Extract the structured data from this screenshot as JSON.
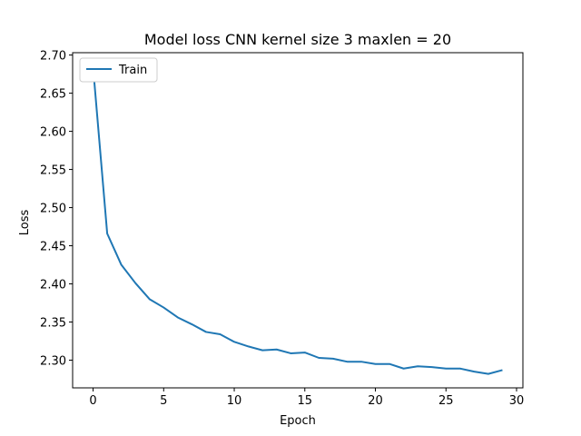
{
  "chart_data": {
    "type": "line",
    "title": "Model loss CNN kernel size 3 maxlen = 20",
    "xlabel": "Epoch",
    "ylabel": "Loss",
    "xlim": [
      -1.45,
      30.45
    ],
    "ylim": [
      2.2637,
      2.7031
    ],
    "xticks": [
      0,
      5,
      10,
      15,
      20,
      25,
      30
    ],
    "yticks": [
      2.3,
      2.35,
      2.4,
      2.45,
      2.5,
      2.55,
      2.6,
      2.65,
      2.7
    ],
    "grid": false,
    "legend": "upper-left",
    "series": [
      {
        "name": "Train",
        "color": "#1f77b4",
        "x": [
          0,
          1,
          2,
          3,
          4,
          5,
          6,
          7,
          8,
          9,
          10,
          11,
          12,
          13,
          14,
          15,
          16,
          17,
          18,
          19,
          20,
          21,
          22,
          23,
          24,
          25,
          26,
          27,
          28,
          29
        ],
        "y": [
          2.684,
          2.466,
          2.425,
          2.401,
          2.38,
          2.369,
          2.356,
          2.347,
          2.337,
          2.334,
          2.324,
          2.318,
          2.313,
          2.314,
          2.309,
          2.31,
          2.303,
          2.302,
          2.298,
          2.298,
          2.295,
          2.295,
          2.289,
          2.292,
          2.291,
          2.289,
          2.289,
          2.285,
          2.282,
          2.287
        ]
      }
    ]
  }
}
